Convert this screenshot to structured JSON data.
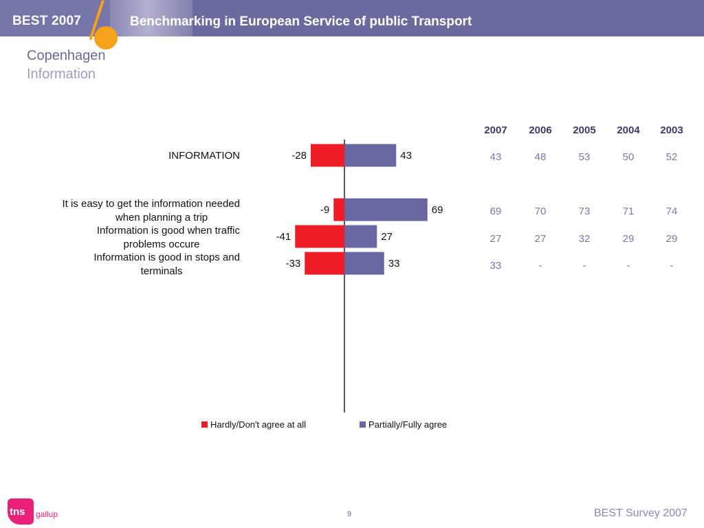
{
  "header": {
    "left_title": "BEST 2007",
    "subtitle": "Benchmarking in European Service of public Transport"
  },
  "page": {
    "title": "Copenhagen",
    "subtitle": "Information"
  },
  "colors": {
    "banner": "#6b6a9e",
    "accent_orange": "#f7a21b",
    "negative": "#ee1c24",
    "positive": "#6967a2",
    "title_text": "#6a69a0",
    "table_text": "#7a79a8"
  },
  "chart_data": {
    "type": "bar",
    "orientation": "horizontal-diverging",
    "categories": [
      "INFORMATION",
      "It is easy to get the information needed when planning a trip",
      "Information is good when traffic problems occure",
      "Information is good in stops and terminals"
    ],
    "series": [
      {
        "name": "Hardly/Don't agree at all",
        "values": [
          -28,
          -9,
          -41,
          -33
        ],
        "color": "#ee1c24"
      },
      {
        "name": "Partially/Fully agree",
        "values": [
          43,
          69,
          27,
          33
        ],
        "color": "#6967a2"
      }
    ],
    "legend_position": "bottom",
    "grid": false
  },
  "table": {
    "headers": [
      "2007",
      "2006",
      "2005",
      "2004",
      "2003"
    ],
    "rows": [
      [
        "43",
        "48",
        "53",
        "50",
        "52"
      ],
      [
        "69",
        "70",
        "73",
        "71",
        "74"
      ],
      [
        "27",
        "27",
        "32",
        "29",
        "29"
      ],
      [
        "33",
        "-",
        "-",
        "-",
        "-"
      ]
    ]
  },
  "footer": {
    "page_number": "9",
    "brand": "BEST Survey 2007",
    "logo_text": "tns",
    "logo_sub": "gallup"
  }
}
